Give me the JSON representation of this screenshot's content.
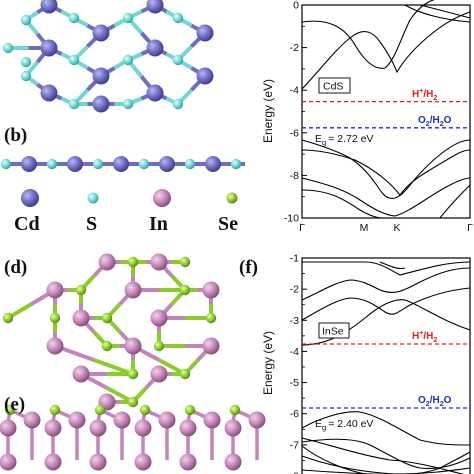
{
  "panels": {
    "b": "(b)",
    "d": "(d)",
    "e": "(e)",
    "f": "(f)"
  },
  "legend": {
    "cd": "Cd",
    "s": "S",
    "in": "In",
    "se": "Se"
  },
  "colors": {
    "cd": "#6c6cc4",
    "s": "#6fd8d2",
    "in": "#c484b8",
    "se": "#8ccc2a",
    "h_line": "#e0201c",
    "o_line": "#1f2fc8"
  },
  "chart_data": [
    {
      "type": "line",
      "material": "CdS",
      "ylabel": "Energy (eV)",
      "ylim": [
        -10,
        0
      ],
      "yticks": [
        "0",
        "-2",
        "-4",
        "-6",
        "-8",
        "-10"
      ],
      "xticks": [
        "Γ",
        "M",
        "K",
        "Γ"
      ],
      "ref_lines": [
        {
          "label_main": "H",
          "label_sup": "+",
          "label_mid": "/H",
          "label_sub": "2",
          "value": -4.44
        },
        {
          "label_main": "O",
          "label_sub": "2",
          "label_rest": "/H",
          "label_sub2": "2",
          "label_end": "O",
          "value": -5.67
        }
      ],
      "gap_label": "E",
      "gap_sub": "g",
      "gap_value": "= 2.72 eV",
      "gap": 2.72
    },
    {
      "type": "line",
      "material": "InSe",
      "ylabel": "Energy (eV)",
      "ylim": [
        -8,
        -1
      ],
      "yticks": [
        "-1",
        "-2",
        "-3",
        "-4",
        "-5",
        "-6",
        "-7",
        "-8"
      ],
      "ref_lines": [
        {
          "label_main": "H",
          "label_sup": "+",
          "label_mid": "/H",
          "label_sub": "2",
          "value": -4.44
        },
        {
          "label_main": "O",
          "label_sub": "2",
          "label_rest": "/H",
          "label_sub2": "2",
          "label_end": "O",
          "value": -5.67
        }
      ],
      "gap_label": "E",
      "gap_sub": "g",
      "gap_value": "= 2.40 eV",
      "gap": 2.4
    }
  ]
}
